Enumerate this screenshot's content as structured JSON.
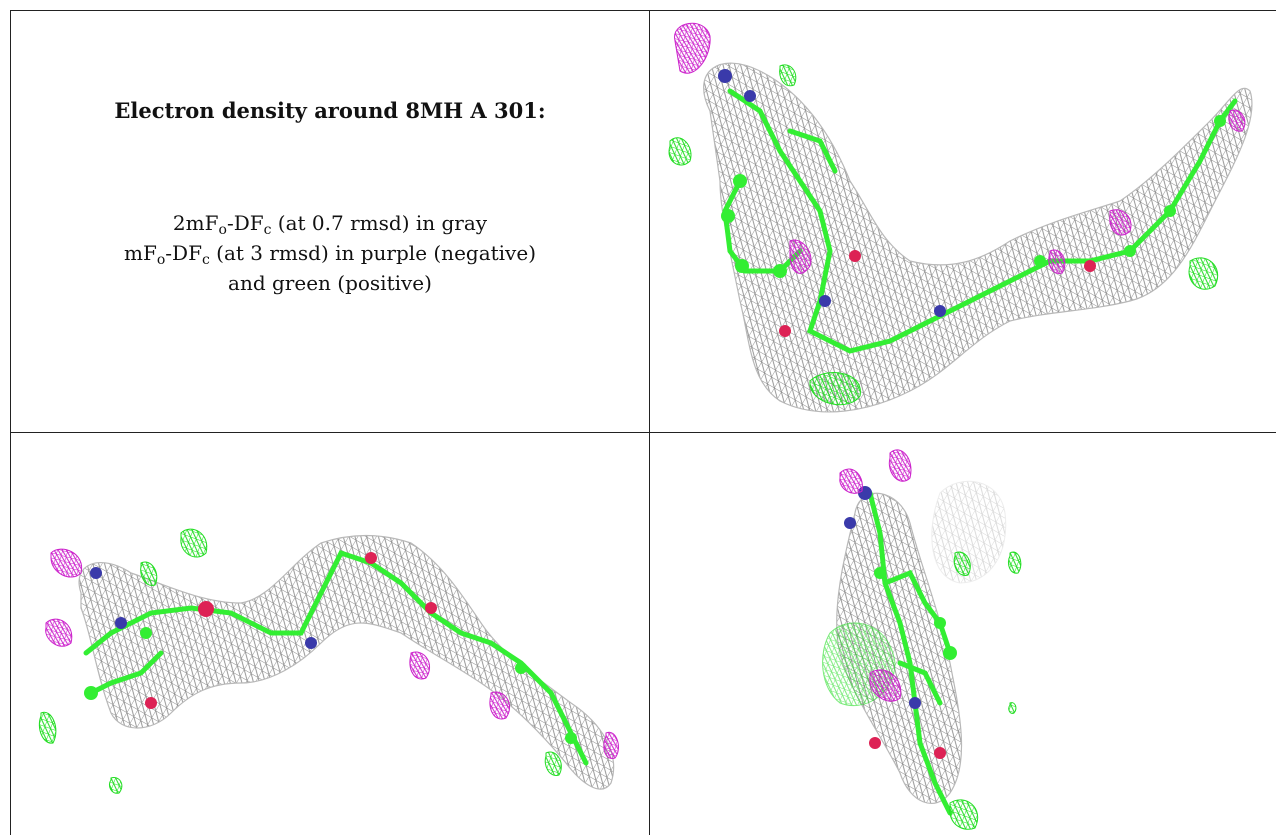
{
  "caption": {
    "title": "Electron density around 8MH A 301:",
    "line1": {
      "a": "2mF",
      "b": "o",
      "c": "-DF",
      "d": "c",
      "e": " (at 0.7 rmsd) in gray"
    },
    "line2": {
      "a": "mF",
      "b": "o",
      "c": "-DF",
      "d": "c",
      "e": " (at 3 rmsd) in purple (negative)"
    },
    "line3": "and green (positive)"
  },
  "colors": {
    "mesh_gray": "#9a9a9a",
    "model_green": "#33ee33",
    "nitrogen_blue": "#3a3aaa",
    "oxygen_red": "#dd2255",
    "negative_purple": "#cc22cc",
    "positive_green": "#22dd22",
    "grid_line": "#222222"
  },
  "panels": [
    {
      "name": "view-top-right",
      "icon": "density-view-1"
    },
    {
      "name": "view-bottom-left",
      "icon": "density-view-2"
    },
    {
      "name": "view-bottom-right",
      "icon": "density-view-3"
    }
  ]
}
